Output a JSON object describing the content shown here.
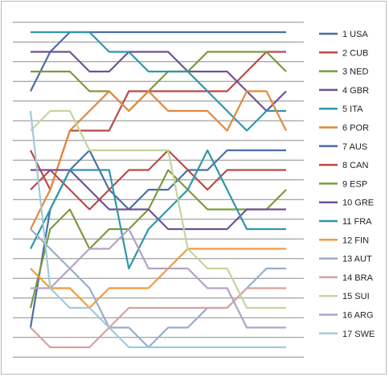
{
  "chart_data": {
    "type": "line",
    "title": "",
    "xlabel": "",
    "ylabel": "",
    "x": [
      1,
      2,
      3,
      4,
      5,
      6,
      7,
      8,
      9,
      10,
      11,
      12,
      13,
      14
    ],
    "y_rank_range": [
      1,
      17
    ],
    "y_inverted": true,
    "grid": "horizontal",
    "legend_position": "right",
    "series": [
      {
        "name": "1 USA",
        "color": "#4a6fa5",
        "values": [
          4,
          2,
          1,
          1,
          1,
          1,
          1,
          1,
          1,
          1,
          1,
          1,
          1,
          1
        ]
      },
      {
        "name": "2 CUB",
        "color": "#b94a48",
        "values": [
          7,
          9,
          6,
          6,
          6,
          4,
          4,
          4,
          4,
          4,
          4,
          3,
          2,
          2
        ]
      },
      {
        "name": "3 NED",
        "color": "#7c9a3c",
        "values": [
          3,
          3,
          3,
          4,
          4,
          5,
          4,
          3,
          3,
          2,
          2,
          2,
          2,
          3
        ]
      },
      {
        "name": "4 GBR",
        "color": "#6e5295",
        "values": [
          2,
          2,
          2,
          3,
          3,
          2,
          2,
          2,
          3,
          3,
          3,
          4,
          5,
          4
        ]
      },
      {
        "name": "5 ITA",
        "color": "#3196aa",
        "values": [
          1,
          1,
          1,
          1,
          2,
          2,
          3,
          3,
          3,
          4,
          5,
          6,
          5,
          5
        ]
      },
      {
        "name": "6 POR",
        "color": "#e2883c",
        "values": [
          11,
          9,
          6,
          5,
          4,
          5,
          4,
          5,
          5,
          5,
          6,
          4,
          4,
          6
        ]
      },
      {
        "name": "7 AUS",
        "color": "#4a6fa5",
        "values": [
          16,
          10,
          8,
          7,
          9,
          10,
          9,
          9,
          8,
          8,
          7,
          7,
          7,
          7
        ]
      },
      {
        "name": "8 CAN",
        "color": "#b94a48",
        "values": [
          9,
          8,
          9,
          10,
          9,
          8,
          8,
          7,
          8,
          9,
          8,
          8,
          8,
          8
        ]
      },
      {
        "name": "9 ESP",
        "color": "#7c9a3c",
        "values": [
          15,
          11,
          10,
          12,
          11,
          11,
          10,
          8,
          9,
          10,
          10,
          10,
          10,
          9
        ]
      },
      {
        "name": "10 GRE",
        "color": "#6e5295",
        "values": [
          8,
          8,
          8,
          9,
          10,
          10,
          10,
          11,
          11,
          11,
          11,
          10,
          10,
          10
        ]
      },
      {
        "name": "11 FRA",
        "color": "#3196aa",
        "values": [
          12,
          10,
          8,
          8,
          8,
          13,
          11,
          10,
          9,
          7,
          9,
          11,
          11,
          11
        ]
      },
      {
        "name": "12 FIN",
        "color": "#f39a3c",
        "values": [
          13,
          14,
          14,
          15,
          14,
          14,
          14,
          13,
          12,
          12,
          12,
          12,
          12,
          12
        ]
      },
      {
        "name": "13 AUT",
        "color": "#95aecb",
        "values": [
          11,
          12,
          13,
          14,
          16,
          16,
          17,
          16,
          16,
          15,
          15,
          14,
          13,
          13
        ]
      },
      {
        "name": "14 BRA",
        "color": "#d8a19e",
        "values": [
          16,
          17,
          17,
          17,
          16,
          15,
          15,
          15,
          15,
          15,
          15,
          14,
          14,
          14
        ]
      },
      {
        "name": "15 SUI",
        "color": "#c3d69b",
        "values": [
          6,
          5,
          5,
          7,
          7,
          7,
          7,
          7,
          12,
          13,
          13,
          15,
          15,
          15
        ]
      },
      {
        "name": "16 ARG",
        "color": "#b3a2c7",
        "values": [
          14,
          14,
          13,
          12,
          12,
          11,
          13,
          13,
          13,
          14,
          14,
          16,
          16,
          16
        ]
      },
      {
        "name": "17 SWE",
        "color": "#9fcbdb",
        "values": [
          5,
          14,
          15,
          15,
          16,
          17,
          17,
          17,
          17,
          17,
          17,
          17,
          17,
          17
        ]
      }
    ]
  }
}
